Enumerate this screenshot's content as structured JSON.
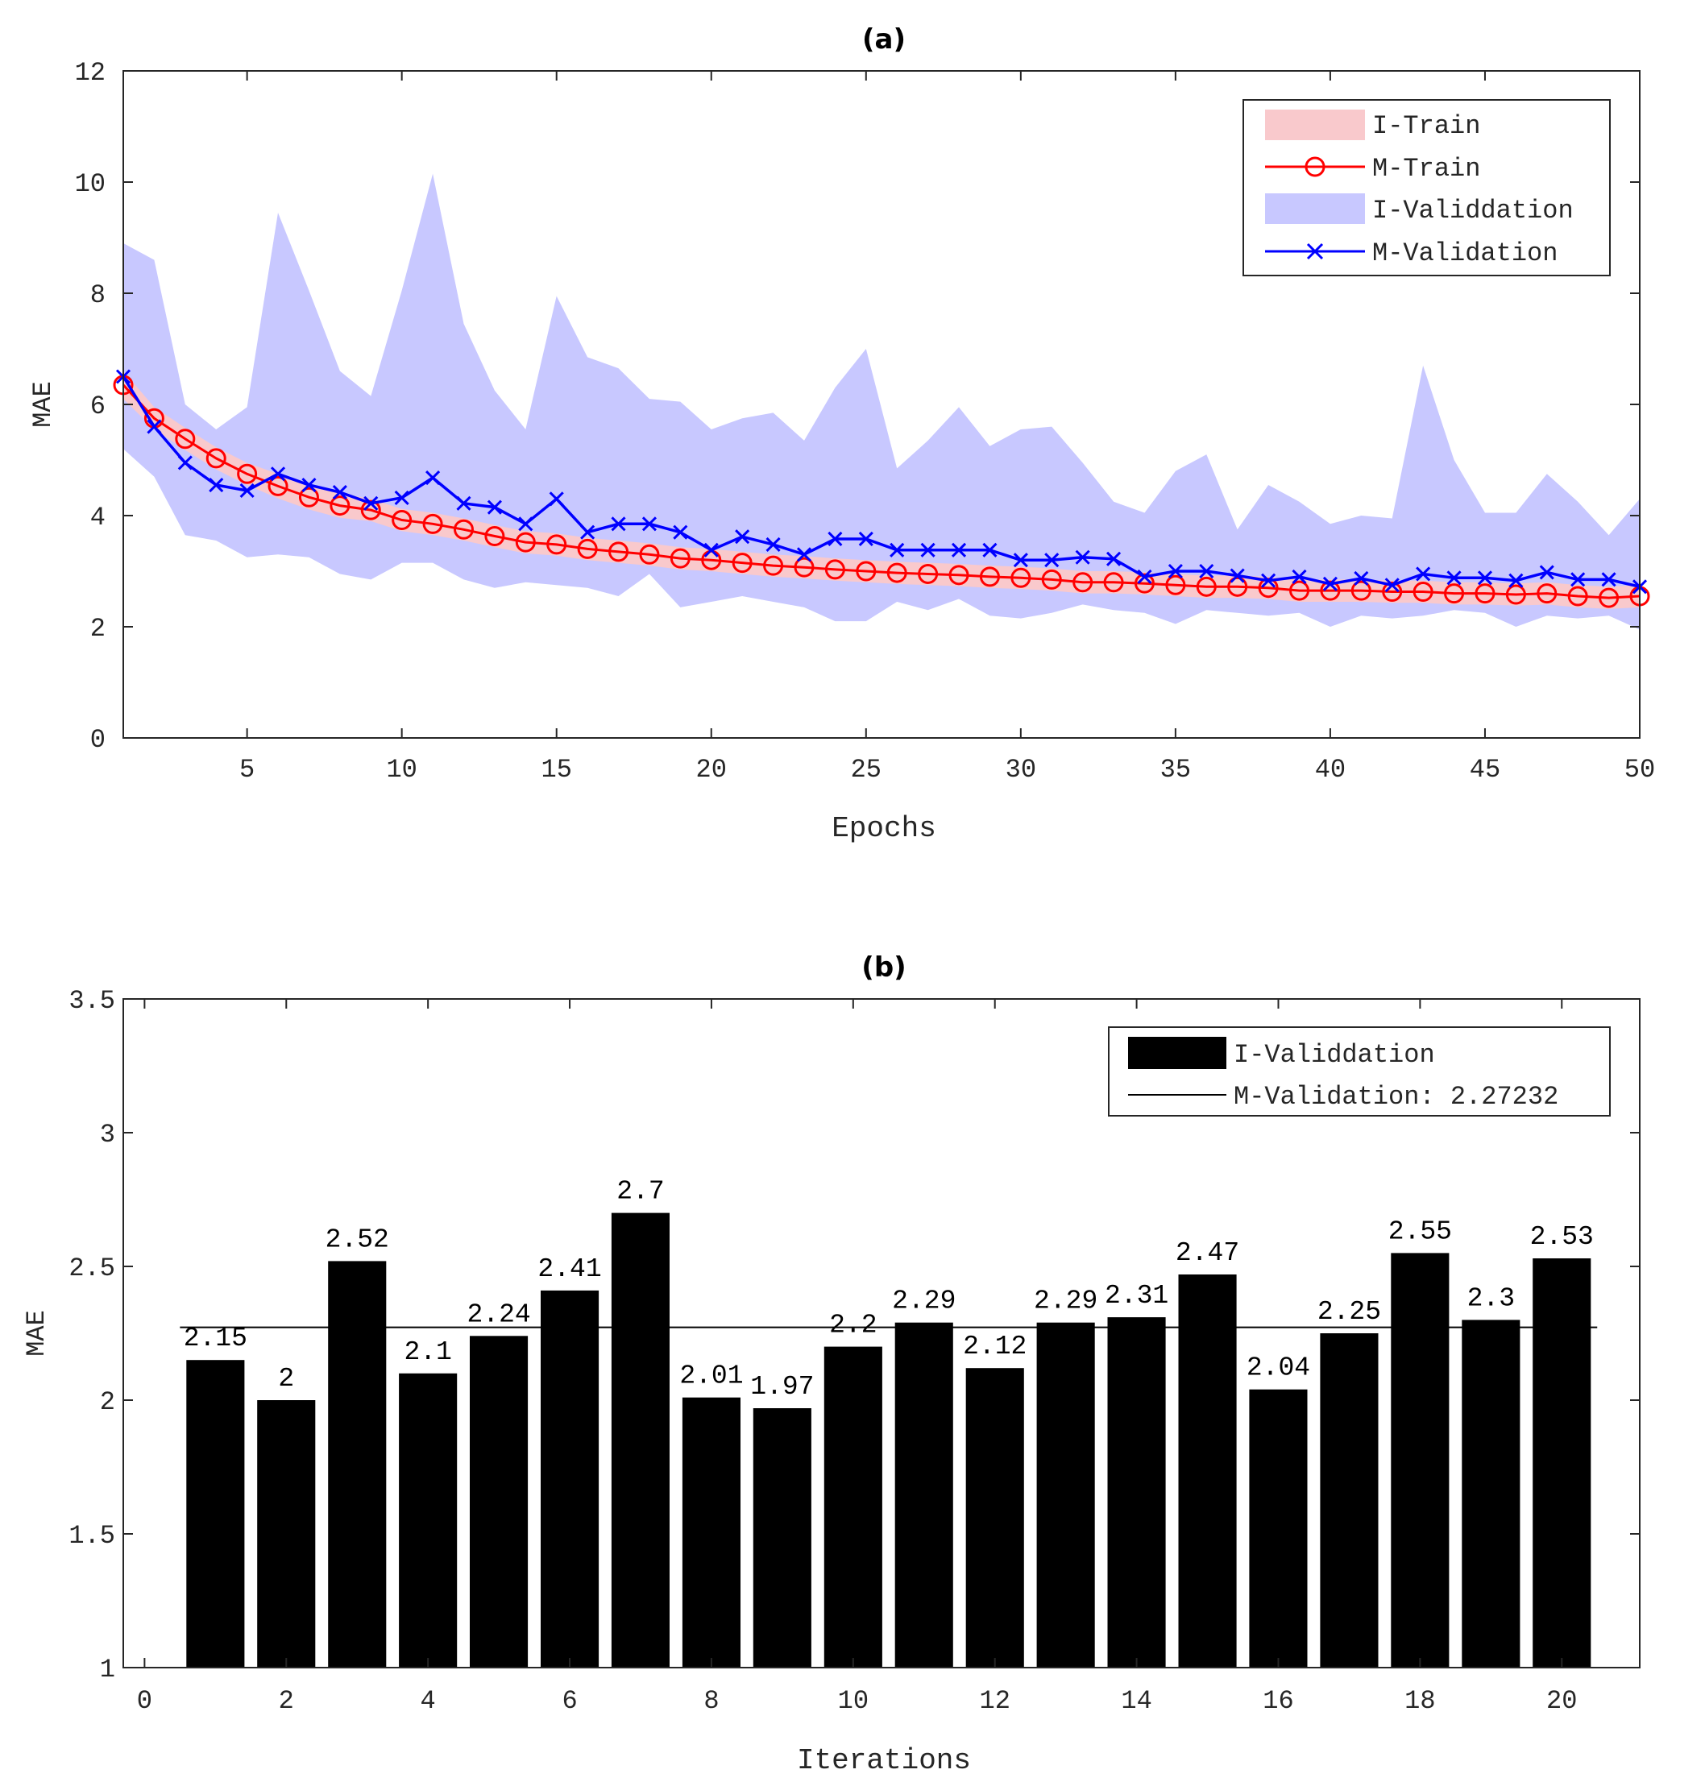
{
  "chart_data": [
    {
      "type": "line",
      "title": "(a)",
      "xlabel": "Epochs",
      "ylabel": "MAE",
      "xlim": [
        1,
        50
      ],
      "ylim": [
        0,
        12
      ],
      "xticks": [
        5,
        10,
        15,
        20,
        25,
        30,
        35,
        40,
        45,
        50
      ],
      "yticks": [
        0,
        2,
        4,
        6,
        8,
        10,
        12
      ],
      "legend_position": "top-right",
      "legend": [
        {
          "label": "I-Train",
          "kind": "band",
          "color": "#f9c9cc"
        },
        {
          "label": "M-Train",
          "kind": "line-circle",
          "color": "#ff0000"
        },
        {
          "label": "I-Validdation",
          "kind": "band",
          "color": "#c8c8ff"
        },
        {
          "label": "M-Validation",
          "kind": "line-cross",
          "color": "#0000ff"
        }
      ],
      "x": [
        1,
        2,
        3,
        4,
        5,
        6,
        7,
        8,
        9,
        10,
        11,
        12,
        13,
        14,
        15,
        16,
        17,
        18,
        19,
        20,
        21,
        22,
        23,
        24,
        25,
        26,
        27,
        28,
        29,
        30,
        31,
        32,
        33,
        34,
        35,
        36,
        37,
        38,
        39,
        40,
        41,
        42,
        43,
        44,
        45,
        46,
        47,
        48,
        49,
        50
      ],
      "series": [
        {
          "name": "M-Train",
          "color": "#ff0000",
          "values": [
            6.35,
            5.75,
            5.38,
            5.03,
            4.75,
            4.53,
            4.33,
            4.18,
            4.1,
            3.92,
            3.85,
            3.75,
            3.63,
            3.52,
            3.48,
            3.4,
            3.35,
            3.3,
            3.23,
            3.2,
            3.15,
            3.1,
            3.07,
            3.03,
            3.0,
            2.97,
            2.95,
            2.93,
            2.9,
            2.88,
            2.85,
            2.8,
            2.8,
            2.78,
            2.75,
            2.72,
            2.72,
            2.7,
            2.65,
            2.65,
            2.65,
            2.63,
            2.63,
            2.6,
            2.6,
            2.58,
            2.6,
            2.55,
            2.52,
            2.55
          ]
        },
        {
          "name": "M-Validation",
          "color": "#0000ff",
          "values": [
            6.5,
            5.6,
            4.95,
            4.55,
            4.45,
            4.75,
            4.55,
            4.42,
            4.22,
            4.32,
            4.68,
            4.22,
            4.15,
            3.85,
            4.3,
            3.7,
            3.85,
            3.85,
            3.7,
            3.38,
            3.62,
            3.48,
            3.3,
            3.58,
            3.58,
            3.38,
            3.38,
            3.38,
            3.38,
            3.2,
            3.2,
            3.25,
            3.22,
            2.9,
            3.0,
            3.0,
            2.92,
            2.83,
            2.9,
            2.77,
            2.87,
            2.75,
            2.95,
            2.88,
            2.88,
            2.83,
            2.98,
            2.85,
            2.85,
            2.72
          ]
        },
        {
          "name": "I-Train",
          "color": "#f9c9cc",
          "upper": [
            6.6,
            5.95,
            5.58,
            5.23,
            4.95,
            4.75,
            4.55,
            4.4,
            4.3,
            4.12,
            4.05,
            3.95,
            3.83,
            3.72,
            3.68,
            3.6,
            3.55,
            3.5,
            3.43,
            3.4,
            3.35,
            3.3,
            3.27,
            3.23,
            3.2,
            3.17,
            3.15,
            3.13,
            3.1,
            3.08,
            3.05,
            3.0,
            3.0,
            2.98,
            2.95,
            2.92,
            2.92,
            2.9,
            2.85,
            2.85,
            2.85,
            2.83,
            2.83,
            2.8,
            2.8,
            2.78,
            2.8,
            2.75,
            2.72,
            2.75
          ],
          "lower": [
            6.1,
            5.55,
            5.18,
            4.83,
            4.55,
            4.31,
            4.11,
            3.96,
            3.9,
            3.72,
            3.65,
            3.55,
            3.43,
            3.32,
            3.28,
            3.2,
            3.15,
            3.1,
            3.03,
            3.0,
            2.95,
            2.9,
            2.87,
            2.83,
            2.8,
            2.77,
            2.75,
            2.73,
            2.7,
            2.68,
            2.65,
            2.6,
            2.6,
            2.58,
            2.55,
            2.52,
            2.52,
            2.5,
            2.45,
            2.45,
            2.45,
            2.43,
            2.43,
            2.4,
            2.4,
            2.38,
            2.4,
            2.35,
            2.32,
            2.35
          ]
        },
        {
          "name": "I-Validdation",
          "color": "#c8c8ff",
          "upper": [
            8.9,
            8.6,
            6.0,
            5.55,
            5.95,
            9.45,
            8.05,
            6.6,
            6.15,
            8.05,
            10.15,
            7.45,
            6.25,
            5.55,
            7.95,
            6.85,
            6.65,
            6.1,
            6.05,
            5.55,
            5.75,
            5.85,
            5.35,
            6.3,
            7.0,
            4.85,
            5.35,
            5.95,
            5.25,
            5.55,
            5.6,
            4.95,
            4.25,
            4.05,
            4.8,
            5.1,
            3.75,
            4.55,
            4.25,
            3.85,
            4.0,
            3.95,
            6.7,
            5.0,
            4.05,
            4.05,
            4.75,
            4.25,
            3.65,
            4.3
          ],
          "lower": [
            5.2,
            4.7,
            3.65,
            3.55,
            3.25,
            3.3,
            3.25,
            2.95,
            2.85,
            3.15,
            3.15,
            2.85,
            2.7,
            2.8,
            2.75,
            2.7,
            2.55,
            2.95,
            2.35,
            2.45,
            2.55,
            2.45,
            2.35,
            2.1,
            2.1,
            2.45,
            2.3,
            2.5,
            2.2,
            2.15,
            2.25,
            2.4,
            2.3,
            2.25,
            2.05,
            2.3,
            2.25,
            2.2,
            2.25,
            2.0,
            2.2,
            2.15,
            2.2,
            2.3,
            2.25,
            2.0,
            2.2,
            2.15,
            2.2,
            1.95
          ]
        }
      ]
    },
    {
      "type": "bar",
      "title": "(b)",
      "xlabel": "Iterations",
      "ylabel": "MAE",
      "xlim": [
        -0.3,
        21.1
      ],
      "ylim": [
        1,
        3.5
      ],
      "xticks": [
        0,
        2,
        4,
        6,
        8,
        10,
        12,
        14,
        16,
        18,
        20
      ],
      "yticks": [
        1,
        1.5,
        2,
        2.5,
        3,
        3.5
      ],
      "legend_position": "top-right",
      "legend": [
        {
          "label": "I-Validdation",
          "kind": "bar",
          "color": "#000000"
        },
        {
          "label": "M-Validation: 2.27232",
          "kind": "line",
          "color": "#000000"
        }
      ],
      "categories": [
        1,
        2,
        3,
        4,
        5,
        6,
        7,
        8,
        9,
        10,
        11,
        12,
        13,
        14,
        15,
        16,
        17,
        18,
        19,
        20
      ],
      "values": [
        2.15,
        2,
        2.52,
        2.1,
        2.24,
        2.41,
        2.7,
        2.01,
        1.97,
        2.2,
        2.29,
        2.12,
        2.29,
        2.31,
        2.47,
        2.04,
        2.25,
        2.55,
        2.3,
        2.53
      ],
      "value_labels": [
        "2.15",
        "2",
        "2.52",
        "2.1",
        "2.24",
        "2.41",
        "2.7",
        "2.01",
        "1.97",
        "2.2",
        "2.29",
        "2.12",
        "2.29",
        "2.31",
        "2.47",
        "2.04",
        "2.25",
        "2.55",
        "2.3",
        "2.53"
      ],
      "mean": 2.27232
    }
  ]
}
